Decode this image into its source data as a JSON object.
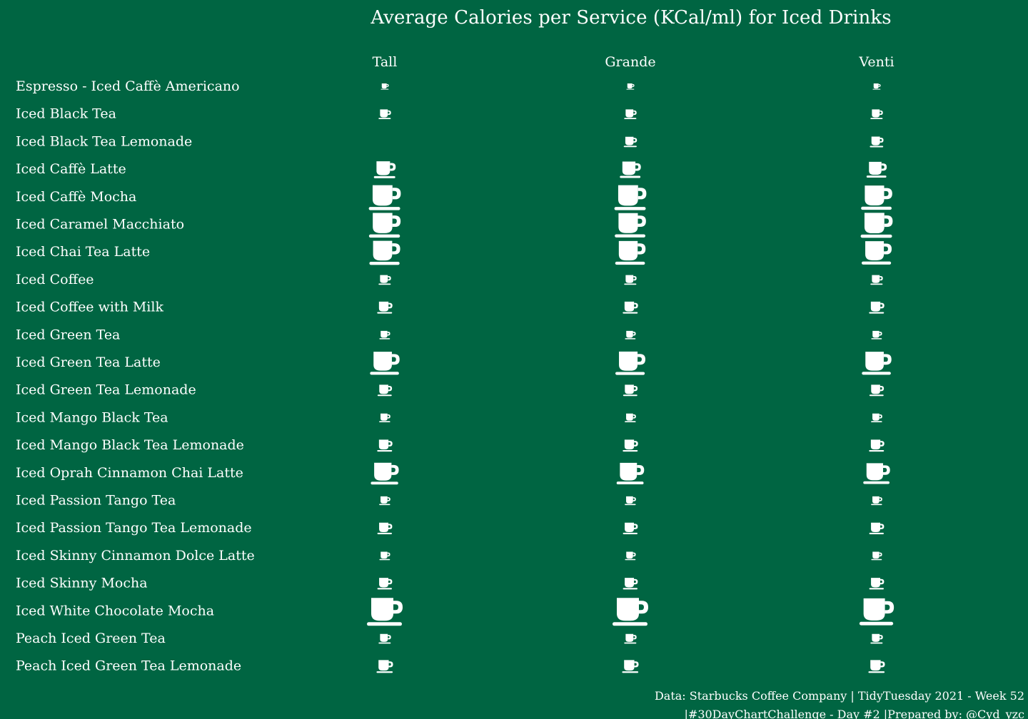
{
  "chart_data": {
    "type": "table",
    "title": "Average Calories per Service (KCal/ml) for Iced Drinks",
    "columns": [
      "Tall",
      "Grande",
      "Venti"
    ],
    "rows": [
      {
        "name": "Espresso - Iced Caffè Americano",
        "values": [
          0.02,
          0.02,
          0.02
        ]
      },
      {
        "name": "Iced Black Tea",
        "values": [
          0.13,
          0.13,
          0.13
        ]
      },
      {
        "name": "Iced Black Tea Lemonade",
        "values": [
          null,
          0.15,
          0.16
        ]
      },
      {
        "name": "Iced Caffè Latte",
        "values": [
          0.36,
          0.34,
          0.32
        ]
      },
      {
        "name": "Iced Caffè Mocha",
        "values": [
          0.61,
          0.61,
          0.59
        ]
      },
      {
        "name": "Iced Caramel Macchiato",
        "values": [
          0.6,
          0.59,
          0.61
        ]
      },
      {
        "name": "Iced Chai Tea Latte",
        "values": [
          0.58,
          0.57,
          0.56
        ]
      },
      {
        "name": "Iced Coffee",
        "values": [
          0.13,
          0.13,
          0.13
        ]
      },
      {
        "name": "Iced Coffee with Milk",
        "values": [
          0.2,
          0.2,
          0.2
        ]
      },
      {
        "name": "Iced Green Tea",
        "values": [
          0.09,
          0.09,
          0.09
        ]
      },
      {
        "name": "Iced Green Tea Latte",
        "values": [
          0.55,
          0.56,
          0.55
        ]
      },
      {
        "name": "Iced Green Tea Lemonade",
        "values": [
          0.18,
          0.18,
          0.18
        ]
      },
      {
        "name": "Iced Mango Black Tea",
        "values": [
          0.1,
          0.1,
          0.1
        ]
      },
      {
        "name": "Iced Mango Black Tea Lemonade",
        "values": [
          0.2,
          0.2,
          0.2
        ]
      },
      {
        "name": "Iced Oprah Cinnamon Chai Latte",
        "values": [
          0.51,
          0.5,
          0.48
        ]
      },
      {
        "name": "Iced Passion Tango Tea",
        "values": [
          0.1,
          0.1,
          0.1
        ]
      },
      {
        "name": "Iced Passion Tango Tea Lemonade",
        "values": [
          0.19,
          0.19,
          0.19
        ]
      },
      {
        "name": "Iced Skinny Cinnamon Dolce Latte",
        "values": [
          0.09,
          0.09,
          0.09
        ]
      },
      {
        "name": "Iced Skinny Mocha",
        "values": [
          0.19,
          0.19,
          0.19
        ]
      },
      {
        "name": "Iced White Chocolate Mocha",
        "values": [
          0.7,
          0.7,
          0.67
        ]
      },
      {
        "name": "Peach Iced Green Tea",
        "values": [
          0.13,
          0.13,
          0.13
        ]
      },
      {
        "name": "Peach Iced Green Tea Lemonade",
        "values": [
          0.23,
          0.23,
          0.23
        ]
      }
    ],
    "marker": "coffee-cup-icon",
    "grid": false,
    "legend": "none"
  },
  "colors": {
    "background": "#006542",
    "foreground": "#ffffff"
  },
  "caption_line1": "Data: Starbucks Coffee Company | TidyTuesday 2021 - Week 52",
  "caption_line2": "|#30DayChartChallenge - Day #2 |Prepared by: @Cyd_yzc"
}
